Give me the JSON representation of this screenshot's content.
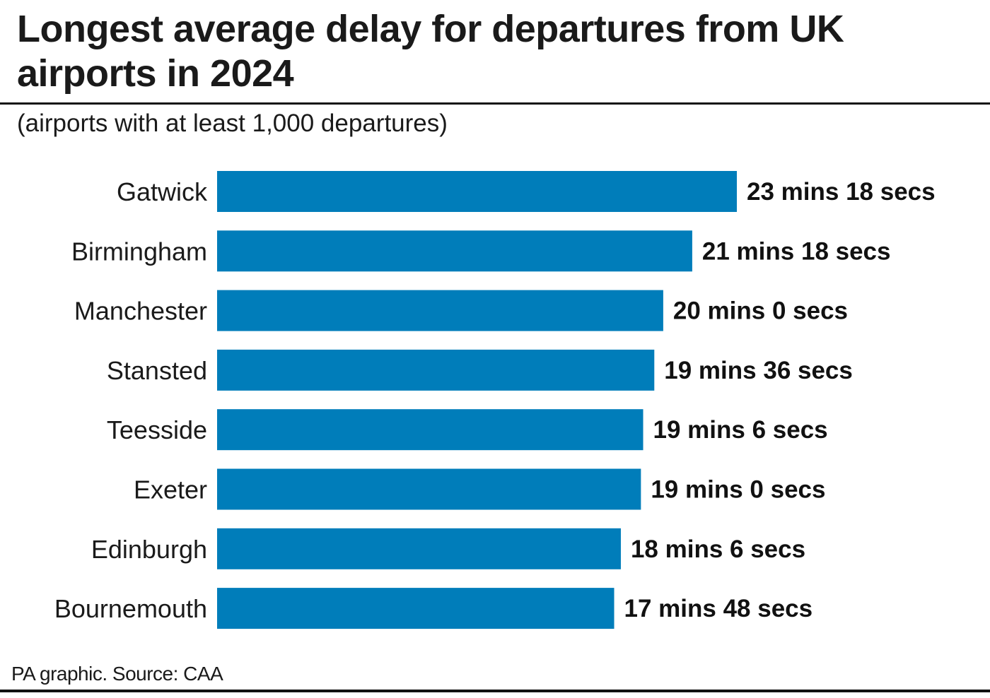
{
  "title": "Longest average delay for departures from UK airports in 2024",
  "subtitle": "(airports with at least 1,000 departures)",
  "source": "PA graphic. Source: CAA",
  "colors": {
    "bar": "#007dba",
    "text": "#1a1a1a",
    "rule": "#111111"
  },
  "chart_data": {
    "type": "bar",
    "orientation": "horizontal",
    "title": "Longest average delay for departures from UK airports in 2024",
    "subtitle": "(airports with at least 1,000 departures)",
    "xlabel": "",
    "ylabel": "",
    "unit": "seconds",
    "xlim": [
      0,
      1400
    ],
    "categories": [
      "Gatwick",
      "Birmingham",
      "Manchester",
      "Stansted",
      "Teesside",
      "Exeter",
      "Edinburgh",
      "Bournemouth"
    ],
    "values": [
      1398,
      1278,
      1200,
      1176,
      1146,
      1140,
      1086,
      1068
    ],
    "data_labels": [
      "23 mins 18 secs",
      "21 mins 18 secs",
      "20 mins 0 secs",
      "19 mins 36 secs",
      "19 mins 6 secs",
      "19 mins 0 secs",
      "18 mins 6 secs",
      "17 mins 48 secs"
    ]
  }
}
